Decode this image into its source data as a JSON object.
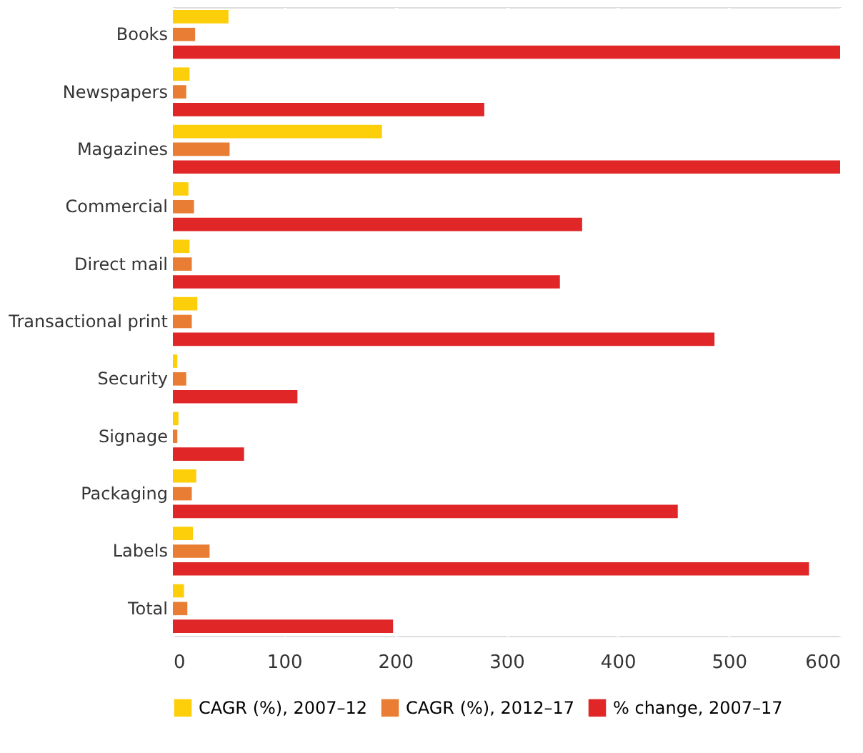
{
  "chart_data": {
    "type": "bar",
    "orientation": "horizontal",
    "categories": [
      "Books",
      "Newspapers",
      "Magazines",
      "Commercial",
      "Direct mail",
      "Transactional print",
      "Security",
      "Signage",
      "Packaging",
      "Labels",
      "Total"
    ],
    "series": [
      {
        "name": "CAGR (%), 2007–12",
        "color": "#fccf0a",
        "values": [
          50,
          15,
          188,
          14,
          15,
          22,
          4,
          5,
          21,
          18,
          10
        ]
      },
      {
        "name": "CAGR (%), 2012–17",
        "color": "#e87d33",
        "values": [
          20,
          12,
          51,
          19,
          17,
          17,
          12,
          4,
          17,
          33,
          13
        ]
      },
      {
        "name": "% change, 2007–17",
        "color": "#e02626",
        "values": [
          600,
          280,
          600,
          368,
          348,
          487,
          112,
          64,
          454,
          572,
          198
        ]
      }
    ],
    "xlim": [
      0,
      600
    ],
    "xticks": [
      0,
      100,
      200,
      300,
      400,
      500,
      600
    ],
    "grid": "x",
    "legend": "bottom"
  }
}
